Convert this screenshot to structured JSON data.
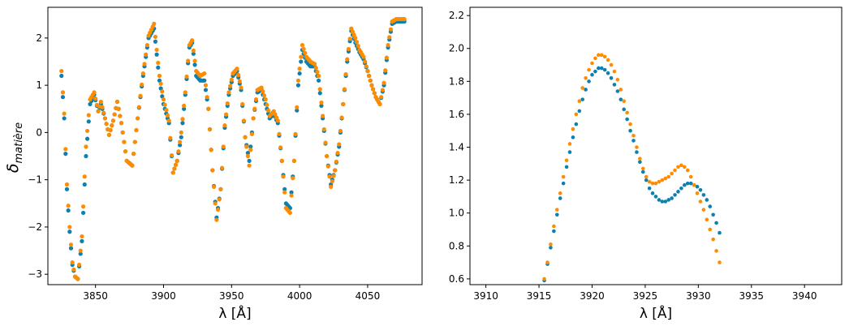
{
  "chart_data": [
    {
      "type": "scatter",
      "xlabel": "λ [Å]",
      "ylabel": "δ",
      "ylabel_sub": "matière",
      "xlim": [
        3815,
        4090
      ],
      "ylim": [
        -3.22,
        2.65
      ],
      "xticks": [
        3850,
        3900,
        3950,
        4000,
        4050
      ],
      "yticks": [
        -3,
        -2,
        -1,
        0,
        1,
        2
      ],
      "grid": false,
      "series": [
        {
          "color": "#0a81b0",
          "x": [
            3825,
            3827,
            3829,
            3831,
            3833,
            3835,
            3837,
            3840,
            3843,
            3846,
            3849,
            3852,
            3854,
            3857,
            3860,
            3863,
            3866,
            3869,
            3873,
            3877,
            3881,
            3885,
            3889,
            3893,
            3897,
            3900,
            3904,
            3907,
            3910,
            3913,
            3916,
            3919,
            3921,
            3924,
            3927,
            3930,
            3933,
            3936,
            3939,
            3942,
            3945,
            3948,
            3951,
            3954,
            3957,
            3960,
            3963,
            3966,
            3969,
            3972,
            3975,
            3978,
            3981,
            3984,
            3987,
            3990,
            3993,
            3996,
            3999,
            4002,
            4005,
            4008,
            4011,
            4014,
            4017,
            4020,
            4023,
            4026,
            4029,
            4032,
            4035,
            4038,
            4041,
            4044,
            4047,
            4050,
            4053,
            4056,
            4059,
            4062,
            4065,
            4068,
            4071,
            4074,
            4077
          ],
          "y": [
            1.2,
            0.3,
            -1.2,
            -2.1,
            -2.8,
            -3.05,
            -3.1,
            -2.3,
            -0.5,
            0.6,
            0.8,
            0.45,
            0.6,
            0.3,
            -0.05,
            0.25,
            0.65,
            0.2,
            -0.6,
            -0.7,
            0.3,
            1.2,
            2.0,
            2.2,
            1.1,
            0.6,
            0.2,
            -0.85,
            -0.6,
            -0.1,
            0.8,
            1.8,
            1.9,
            1.2,
            1.1,
            1.1,
            0.5,
            -0.8,
            -1.8,
            -1.2,
            0.1,
            0.8,
            1.2,
            1.3,
            0.9,
            -0.1,
            -0.6,
            0.3,
            0.85,
            0.9,
            0.6,
            0.3,
            0.4,
            0.2,
            -0.6,
            -1.5,
            -1.6,
            -0.6,
            1.0,
            1.75,
            1.5,
            1.4,
            1.4,
            1.1,
            0.3,
            -0.5,
            -1.1,
            -0.8,
            -0.3,
            0.6,
            1.5,
            2.15,
            1.9,
            1.7,
            1.55,
            1.3,
            1.0,
            0.75,
            0.6,
            1.0,
            1.8,
            2.3,
            2.35,
            2.35,
            2.35
          ]
        },
        {
          "color": "#ff8c00",
          "x": [
            3825,
            3827,
            3829,
            3831,
            3833,
            3835,
            3837,
            3840,
            3843,
            3846,
            3849,
            3852,
            3854,
            3857,
            3860,
            3863,
            3866,
            3869,
            3873,
            3877,
            3881,
            3885,
            3889,
            3893,
            3897,
            3900,
            3904,
            3907,
            3910,
            3913,
            3916,
            3919,
            3921,
            3924,
            3927,
            3930,
            3933,
            3936,
            3939,
            3942,
            3945,
            3948,
            3951,
            3954,
            3957,
            3960,
            3963,
            3966,
            3969,
            3972,
            3975,
            3978,
            3981,
            3984,
            3987,
            3990,
            3993,
            3996,
            3999,
            4002,
            4005,
            4008,
            4011,
            4014,
            4017,
            4020,
            4023,
            4026,
            4029,
            4032,
            4035,
            4038,
            4041,
            4044,
            4047,
            4050,
            4053,
            4056,
            4059,
            4062,
            4065,
            4068,
            4071,
            4074,
            4077
          ],
          "y": [
            1.3,
            0.4,
            -1.1,
            -2.0,
            -2.75,
            -3.05,
            -3.1,
            -2.2,
            -0.3,
            0.7,
            0.85,
            0.45,
            0.65,
            0.3,
            -0.05,
            0.25,
            0.65,
            0.2,
            -0.6,
            -0.7,
            0.3,
            1.25,
            2.05,
            2.3,
            1.2,
            0.7,
            0.25,
            -0.85,
            -0.6,
            0.0,
            0.85,
            1.85,
            1.95,
            1.3,
            1.2,
            1.25,
            0.5,
            -0.8,
            -1.85,
            -1.2,
            0.15,
            0.85,
            1.25,
            1.35,
            0.95,
            -0.1,
            -0.7,
            0.3,
            0.9,
            0.95,
            0.7,
            0.35,
            0.45,
            0.25,
            -0.6,
            -1.6,
            -1.7,
            -0.6,
            1.1,
            1.85,
            1.6,
            1.5,
            1.45,
            1.2,
            0.35,
            -0.5,
            -1.15,
            -0.8,
            -0.25,
            0.6,
            1.55,
            2.2,
            2.0,
            1.75,
            1.6,
            1.3,
            1.0,
            0.75,
            0.6,
            1.05,
            1.85,
            2.35,
            2.4,
            2.4,
            2.4
          ]
        }
      ]
    },
    {
      "type": "scatter",
      "xlabel": "λ [Å]",
      "xlim": [
        3908.5,
        3943.5
      ],
      "ylim": [
        0.565,
        2.25
      ],
      "xticks": [
        3910,
        3915,
        3920,
        3925,
        3930,
        3935,
        3940
      ],
      "yticks": [
        0.6,
        0.8,
        1.0,
        1.2,
        1.4,
        1.6,
        1.8,
        2.0,
        2.2
      ],
      "grid": false,
      "series": [
        {
          "color": "#0a81b0",
          "x": [
            3915.5,
            3915.8,
            3916.1,
            3916.4,
            3916.7,
            3917.0,
            3917.3,
            3917.6,
            3917.9,
            3918.2,
            3918.5,
            3918.8,
            3919.1,
            3919.4,
            3919.7,
            3920.0,
            3920.3,
            3920.6,
            3920.9,
            3921.2,
            3921.5,
            3921.8,
            3922.1,
            3922.4,
            3922.7,
            3923.0,
            3923.3,
            3923.6,
            3923.9,
            3924.2,
            3924.5,
            3924.8,
            3925.1,
            3925.4,
            3925.7,
            3926.0,
            3926.3,
            3926.6,
            3926.9,
            3927.2,
            3927.5,
            3927.8,
            3928.1,
            3928.4,
            3928.7,
            3929.0,
            3929.3,
            3929.6,
            3929.9,
            3930.2,
            3930.5,
            3930.8,
            3931.1,
            3931.4,
            3931.7,
            3932.0
          ],
          "y": [
            0.59,
            0.69,
            0.79,
            0.89,
            0.99,
            1.09,
            1.18,
            1.28,
            1.37,
            1.46,
            1.54,
            1.62,
            1.69,
            1.75,
            1.8,
            1.84,
            1.86,
            1.88,
            1.88,
            1.87,
            1.85,
            1.82,
            1.78,
            1.74,
            1.69,
            1.63,
            1.57,
            1.5,
            1.44,
            1.37,
            1.31,
            1.25,
            1.2,
            1.15,
            1.12,
            1.1,
            1.08,
            1.07,
            1.07,
            1.08,
            1.09,
            1.11,
            1.13,
            1.15,
            1.17,
            1.18,
            1.18,
            1.17,
            1.16,
            1.14,
            1.11,
            1.08,
            1.04,
            0.99,
            0.94,
            0.88
          ]
        },
        {
          "color": "#ff8c00",
          "x": [
            3915.5,
            3915.8,
            3916.1,
            3916.4,
            3916.7,
            3917.0,
            3917.3,
            3917.6,
            3917.9,
            3918.2,
            3918.5,
            3918.8,
            3919.1,
            3919.4,
            3919.7,
            3920.0,
            3920.3,
            3920.6,
            3920.9,
            3921.2,
            3921.5,
            3921.8,
            3922.1,
            3922.4,
            3922.7,
            3923.0,
            3923.3,
            3923.6,
            3923.9,
            3924.2,
            3924.5,
            3924.8,
            3925.1,
            3925.4,
            3925.7,
            3926.0,
            3926.3,
            3926.6,
            3926.9,
            3927.2,
            3927.5,
            3927.8,
            3928.1,
            3928.4,
            3928.7,
            3929.0,
            3929.3,
            3929.6,
            3929.9,
            3930.2,
            3930.5,
            3930.8,
            3931.1,
            3931.4,
            3931.7,
            3932.0
          ],
          "y": [
            0.6,
            0.7,
            0.81,
            0.92,
            1.02,
            1.12,
            1.22,
            1.32,
            1.42,
            1.51,
            1.6,
            1.68,
            1.76,
            1.82,
            1.87,
            1.91,
            1.94,
            1.96,
            1.96,
            1.95,
            1.93,
            1.9,
            1.86,
            1.81,
            1.75,
            1.68,
            1.61,
            1.54,
            1.47,
            1.4,
            1.33,
            1.27,
            1.22,
            1.19,
            1.18,
            1.18,
            1.19,
            1.2,
            1.21,
            1.22,
            1.24,
            1.26,
            1.28,
            1.29,
            1.28,
            1.26,
            1.22,
            1.17,
            1.12,
            1.07,
            1.02,
            0.96,
            0.9,
            0.84,
            0.77,
            0.7
          ]
        }
      ]
    }
  ]
}
